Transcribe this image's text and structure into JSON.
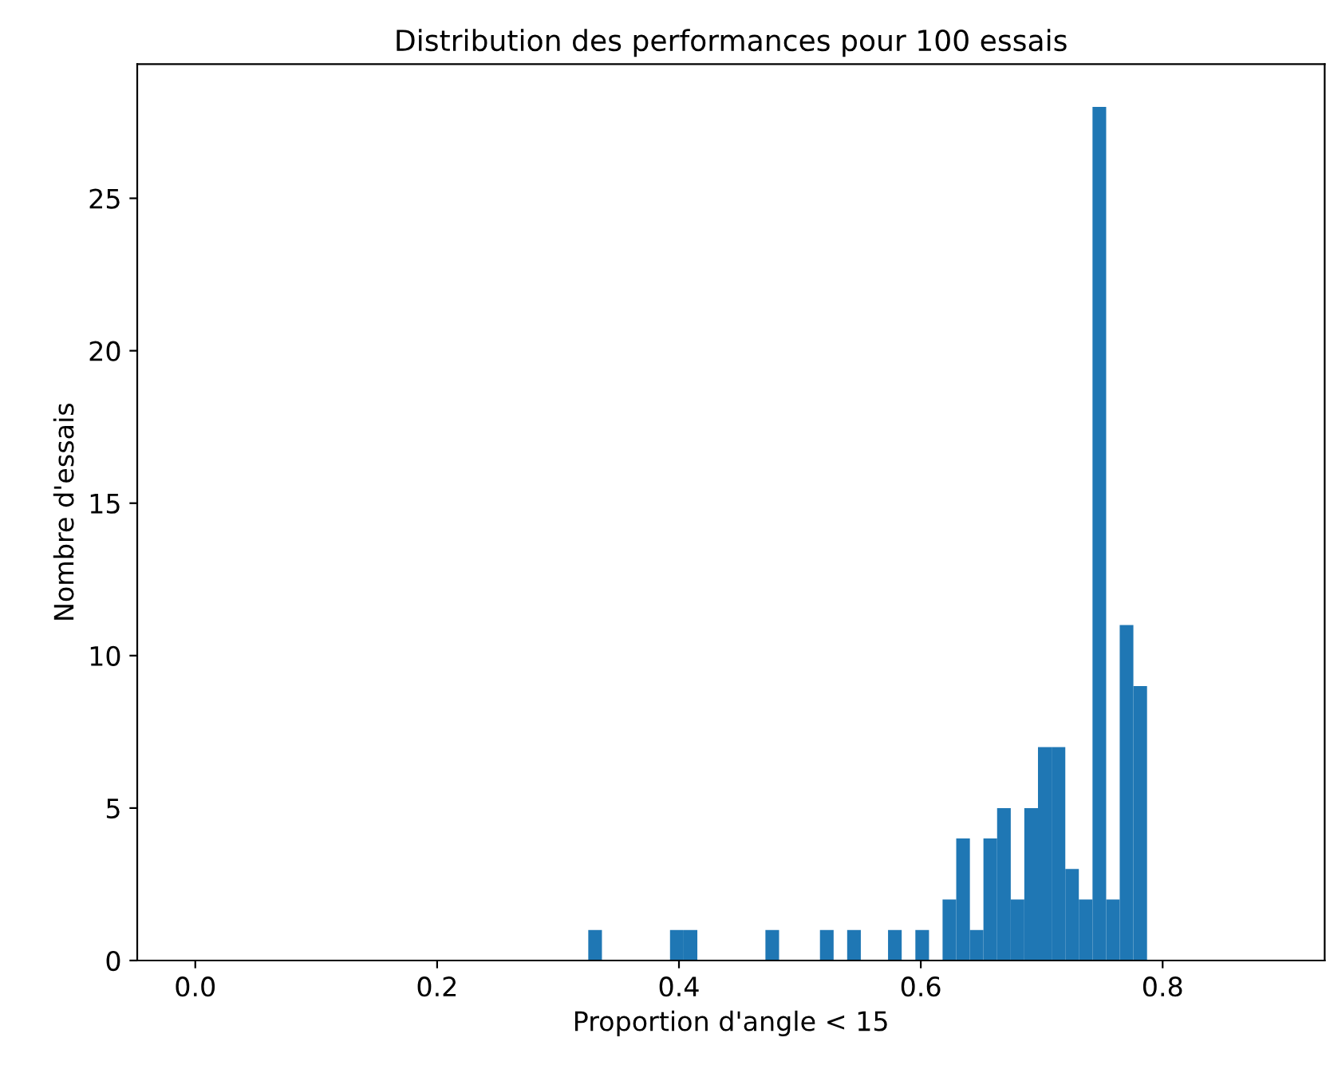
{
  "chart_data": {
    "type": "histogram",
    "title": "Distribution des performances pour 100 essais",
    "xlabel": "Proportion d'angle < 15",
    "ylabel": "Nombre d'essais",
    "color": "#1f77b4",
    "bins": [
      0.325,
      0.3363,
      0.3475,
      0.3588,
      0.3701,
      0.3814,
      0.3926,
      0.4039,
      0.4152,
      0.4264,
      0.4377,
      0.449,
      0.4602,
      0.4715,
      0.4828,
      0.4941,
      0.5053,
      0.5166,
      0.5279,
      0.5391,
      0.5504,
      0.5617,
      0.5729,
      0.5842,
      0.5955,
      0.6068,
      0.618,
      0.6293,
      0.6406,
      0.6518,
      0.6631,
      0.6744,
      0.6856,
      0.6969,
      0.7082,
      0.7195,
      0.7307,
      0.742,
      0.7533,
      0.7645,
      0.7758,
      0.7871
    ],
    "values": [
      1,
      0,
      0,
      0,
      0,
      0,
      1,
      1,
      0,
      0,
      0,
      0,
      0,
      1,
      0,
      0,
      0,
      1,
      0,
      1,
      0,
      0,
      1,
      0,
      1,
      0,
      2,
      4,
      1,
      4,
      5,
      2,
      5,
      7,
      7,
      3,
      2,
      28,
      2,
      11,
      9
    ],
    "xlim": [
      -0.048,
      0.934
    ],
    "ylim": [
      0,
      29.4
    ],
    "xticks": [
      {
        "value": 0,
        "label": "0.0"
      },
      {
        "value": 0.2,
        "label": "0.2"
      },
      {
        "value": 0.4,
        "label": "0.4"
      },
      {
        "value": 0.6,
        "label": "0.6"
      },
      {
        "value": 0.8,
        "label": "0.8"
      }
    ],
    "yticks": [
      0,
      5,
      10,
      15,
      20,
      25
    ],
    "grid": false
  }
}
